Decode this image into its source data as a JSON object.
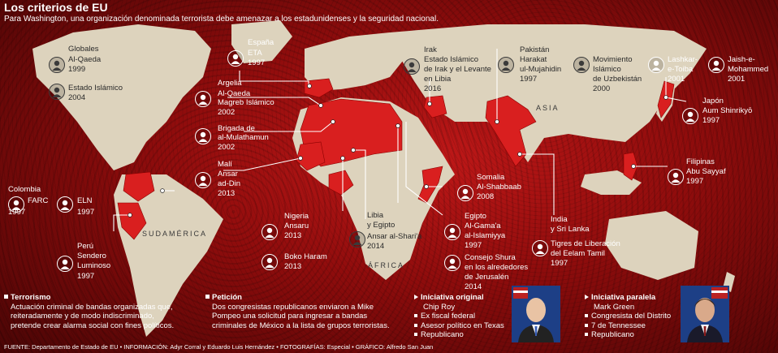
{
  "header": {
    "title": "Los criterios de EU",
    "subtitle": "Para Washington, una organización denominada terrorista debe amenazar a los estadunidenses y la seguridad nacional."
  },
  "regions": {
    "sudamerica": "SUDAMÉRICA",
    "africa": "ÁFRICA",
    "asia": "ASIA"
  },
  "labels": {
    "globales": "Globales",
    "alqaeda": "Al-Qaeda",
    "alqaeda_year": "1999",
    "isis": "Estado Islámico",
    "isis_year": "2004",
    "espana": "España",
    "eta": "ETA",
    "eta_year": "1997",
    "argelia": "Argelia",
    "aqmi1": "Al-Qaeda",
    "aqmi2": "Magreb Islámico",
    "aqmi_year": "2002",
    "brigada1": "Brigada de",
    "brigada2": "al-Mulathamun",
    "brigada_year": "2002",
    "mali": "Malí",
    "ansar1": "Ansar",
    "ansar2": "ad-Din",
    "ansar_year": "2013",
    "colombia": "Colombia",
    "farc": "FARC",
    "farc_year": "1997",
    "eln": "ELN",
    "eln_year": "1997",
    "peru": "Perú",
    "sendero1": "Sendero",
    "sendero2": "Luminoso",
    "sendero_year": "1997",
    "nigeria": "Nigeria",
    "ansaru": "Ansaru",
    "ansaru_year": "2013",
    "boko": "Boko Haram",
    "boko_year": "2013",
    "libia1": "Libia",
    "libia2": "y Egipto",
    "sharia": "Ansar al-Shari'a",
    "sharia_year": "2014",
    "irak": "Irak",
    "isil1": "Estado Islámico",
    "isil2": "de Irak y el Levante",
    "isil3": "en Libia",
    "isil_year": "2016",
    "somalia": "Somalia",
    "shabaab": "Al-Shabbaab",
    "shabaab_year": "2008",
    "egipto": "Egipto",
    "gama1": "Al-Gama'a",
    "gama2": "al-Islamiyya",
    "gama_year": "1997",
    "shura1": "Consejo Shura",
    "shura2": "en los alrededores",
    "shura3": "de Jerusalén",
    "shura_year": "2014",
    "pakistan": "Pakistán",
    "harakat1": "Harakat",
    "harakat2": "ul-Mujahidin",
    "harakat_year": "1997",
    "uzbek1": "Movimiento",
    "uzbek2": "Islámico",
    "uzbek3": "de Uzbekistán",
    "uzbek_year": "2000",
    "lashkar1": "Lashkar-",
    "lashkar2": "e-Toiba",
    "lashkar_year": "2001",
    "jaish1": "Jaish-e-",
    "jaish2": "Mohammed",
    "jaish_year": "2001",
    "japon": "Japón",
    "aum": "Aum Shinrikyō",
    "aum_year": "1997",
    "filipinas": "Filipinas",
    "sayyaf": "Abu Sayyaf",
    "sayyaf_year": "1997",
    "india1": "India",
    "india2": "y Sri Lanka",
    "tigres1": "Tigres de Liberación",
    "tigres2": "del Eelam Tamil",
    "tigres_year": "1997"
  },
  "footer": {
    "terrorismo": {
      "title": "Terrorismo",
      "lines": [
        "Actuación criminal de bandas organizadas que,",
        "reiteradamente y de modo indiscriminado,",
        "pretende crear alarma social con fines políticos."
      ]
    },
    "peticion": {
      "title": "Petición",
      "lines": [
        "Dos congresistas republicanos enviaron a Mike",
        "Pompeo una solicitud para ingresar a bandas",
        "criminales de México a la lista de grupos terroristas."
      ]
    },
    "original": {
      "title": "Iniciativa original",
      "name": "Chip Roy",
      "items": [
        "Ex fiscal federal",
        "Asesor político en Texas",
        "Republicano"
      ]
    },
    "paralela": {
      "title": "Iniciativa paralela",
      "name": "Mark Green",
      "items": [
        "Congresista del Distrito",
        "7 de Tennessee",
        "Republicano"
      ]
    },
    "credits": "FUENTE: Departamento de Estado de EU • INFORMACIÓN: Adyr Corral y Eduardo Luis Hernández • FOTOGRAFÍAS: Especial • GRÁFICO: Alfredo San Juan"
  },
  "colors": {
    "background": "#9e0f0f",
    "land": "#ddd3bd",
    "highlight": "#d91f1f"
  }
}
